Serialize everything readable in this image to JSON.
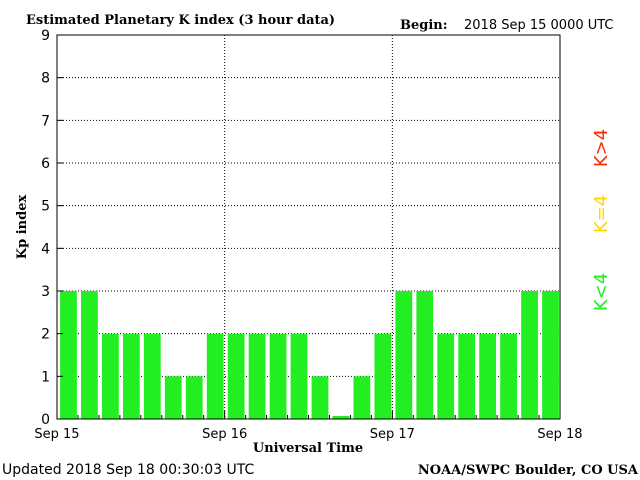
{
  "header": {
    "title": "Estimated Planetary K index (3 hour data)",
    "begin_label": "Begin:",
    "begin_value": "2018 Sep 15 0000 UTC"
  },
  "footer": {
    "updated": "Updated 2018 Sep 18 00:30:03 UTC",
    "source": "NOAA/SWPC Boulder, CO USA"
  },
  "legend": {
    "high": "K>4",
    "equal": "K=4",
    "low": "K<4",
    "colors": {
      "high": "#ff2a00",
      "equal": "#ffd700",
      "low": "#22ee22"
    }
  },
  "chart_data": {
    "type": "bar",
    "xlabel": "Universal Time",
    "ylabel": "Kp index",
    "ylim": [
      0,
      9
    ],
    "yticks": [
      0,
      1,
      2,
      3,
      4,
      5,
      6,
      7,
      8,
      9
    ],
    "day_labels": [
      "Sep 15",
      "Sep 16",
      "Sep 17",
      "Sep 18"
    ],
    "grid": true,
    "bar_color": "#22ee22",
    "values": [
      3,
      3,
      2,
      2,
      2,
      1,
      1,
      2,
      2,
      2,
      2,
      2,
      1,
      0.07,
      1,
      2,
      3,
      3,
      2,
      2,
      2,
      2,
      3,
      3
    ]
  }
}
